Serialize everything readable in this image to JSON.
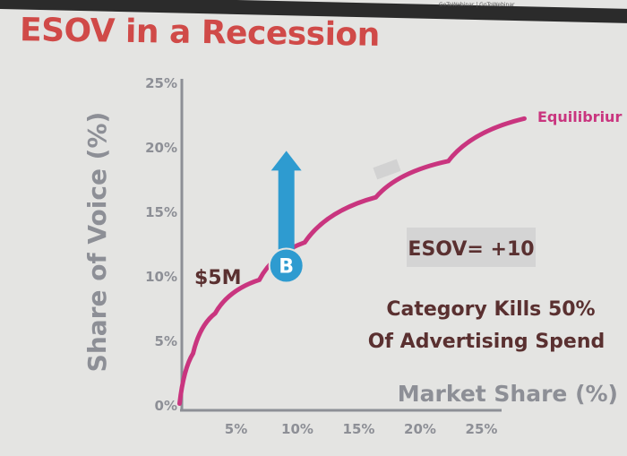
{
  "window": {
    "title_bar": "GoToWebinar | GoToWebinar"
  },
  "slide": {
    "title": "ESOV in a Recession"
  },
  "chart_data": {
    "type": "line",
    "title": "ESOV in a Recession",
    "xlabel": "Market Share (%)",
    "ylabel": "Share of Voice (%)",
    "x_ticks": [
      "5%",
      "10%",
      "15%",
      "20%",
      "25%"
    ],
    "y_ticks": [
      "0%",
      "5%",
      "10%",
      "15%",
      "20%",
      "25%"
    ],
    "xlim": [
      0,
      30
    ],
    "ylim": [
      0,
      25
    ],
    "grid": false,
    "series": [
      {
        "name": "Equilibrium",
        "color": "#c9357f",
        "x": [
          0.4,
          1.5,
          3.3,
          6.9,
          10.6,
          16.4,
          22.3,
          28.5
        ],
        "y": [
          0.1,
          4.0,
          7.1,
          9.7,
          12.6,
          16.1,
          18.9,
          22.2
        ]
      }
    ],
    "annotations": {
      "point_label": "B",
      "point": {
        "x": 9.1,
        "y": 10.8
      },
      "arrow_to_y": 19.7,
      "spend_label": "$5M",
      "esov_label": "ESOV= +10",
      "note_line1": "Category Kills 50%",
      "note_line2": "Of Advertising Spend",
      "series_label": "Equilibriur"
    },
    "colors": {
      "axis": "#8d8f96",
      "marker": "#2e9bd0",
      "note": "#5a3030",
      "title": "#d04a48"
    }
  }
}
